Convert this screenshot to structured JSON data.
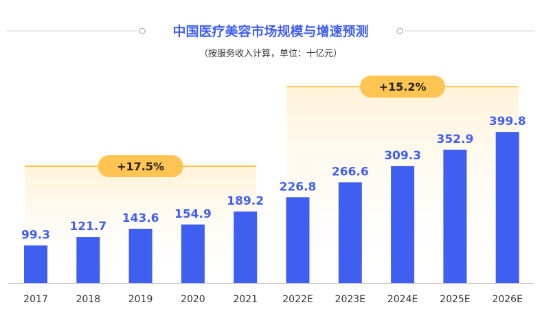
{
  "header": {
    "title": "中国医疗美容市场规模与增速预测",
    "subtitle": "（按服务收入计算，单位：十亿元）"
  },
  "colors": {
    "bar": "#3f5ff0",
    "value_label": "#3f5ff0",
    "title": "#3f5ff0",
    "badge": "#ffc451",
    "bracket": "#ffc451",
    "axis": "#bbbbbb",
    "tick_label": "#333333"
  },
  "chart_data": {
    "type": "bar",
    "title": "中国医疗美容市场规模与增速预测",
    "subtitle": "（按服务收入计算，单位：十亿元）",
    "categories": [
      "2017",
      "2018",
      "2019",
      "2020",
      "2021",
      "2022E",
      "2023E",
      "2024E",
      "2025E",
      "2026E"
    ],
    "values": [
      99.3,
      121.7,
      143.6,
      154.9,
      189.2,
      226.8,
      266.6,
      309.3,
      352.9,
      399.8
    ],
    "value_labels": [
      "99.3",
      "121.7",
      "143.6",
      "154.9",
      "189.2",
      "226.8",
      "266.6",
      "309.3",
      "352.9",
      "399.8"
    ],
    "ylim": [
      0,
      400
    ],
    "grid": false,
    "legend": "none",
    "annotations": [
      {
        "label": "+17.5%",
        "from": "2017",
        "to": "2021"
      },
      {
        "label": "+15.2%",
        "from": "2022E",
        "to": "2026E"
      }
    ]
  }
}
